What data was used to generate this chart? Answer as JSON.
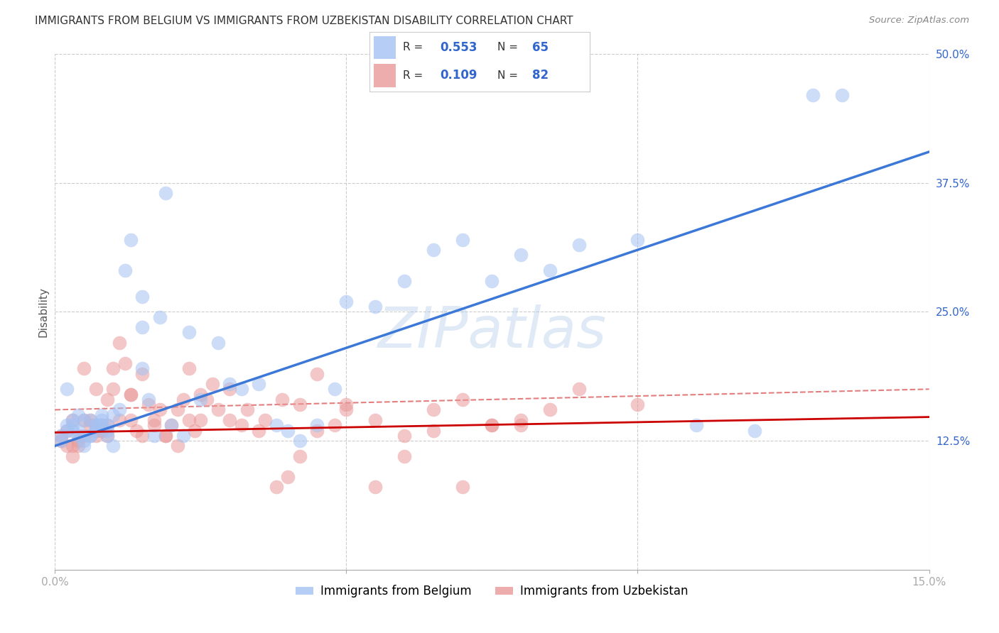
{
  "title": "IMMIGRANTS FROM BELGIUM VS IMMIGRANTS FROM UZBEKISTAN DISABILITY CORRELATION CHART",
  "source": "Source: ZipAtlas.com",
  "ylabel": "Disability",
  "xlim": [
    0.0,
    0.15
  ],
  "ylim": [
    0.0,
    0.5
  ],
  "belgium_R": 0.553,
  "belgium_N": 65,
  "uzbekistan_R": 0.109,
  "uzbekistan_N": 82,
  "belgium_color": "#a4c2f4",
  "uzbekistan_color": "#ea9999",
  "belgium_line_color": "#3c78d8",
  "uzbekistan_line_color": "#cc0000",
  "dashed_line_color": "#e06666",
  "background_color": "#ffffff",
  "grid_color": "#b7b7b7",
  "watermark": "ZIPatlas",
  "belgium_x": [
    0.001,
    0.001,
    0.002,
    0.002,
    0.003,
    0.003,
    0.004,
    0.004,
    0.005,
    0.005,
    0.006,
    0.006,
    0.007,
    0.007,
    0.008,
    0.008,
    0.009,
    0.009,
    0.01,
    0.01,
    0.011,
    0.012,
    0.013,
    0.015,
    0.015,
    0.016,
    0.017,
    0.018,
    0.019,
    0.02,
    0.022,
    0.023,
    0.025,
    0.028,
    0.03,
    0.032,
    0.035,
    0.038,
    0.04,
    0.042,
    0.045,
    0.048,
    0.05,
    0.055,
    0.06,
    0.065,
    0.07,
    0.075,
    0.08,
    0.085,
    0.09,
    0.1,
    0.11,
    0.12,
    0.13,
    0.002,
    0.003,
    0.004,
    0.005,
    0.006,
    0.007,
    0.008,
    0.009,
    0.015,
    0.135
  ],
  "belgium_y": [
    0.13,
    0.125,
    0.14,
    0.135,
    0.14,
    0.135,
    0.15,
    0.13,
    0.12,
    0.145,
    0.13,
    0.145,
    0.14,
    0.135,
    0.15,
    0.145,
    0.13,
    0.14,
    0.12,
    0.15,
    0.155,
    0.29,
    0.32,
    0.265,
    0.235,
    0.165,
    0.13,
    0.245,
    0.365,
    0.14,
    0.13,
    0.23,
    0.165,
    0.22,
    0.18,
    0.175,
    0.18,
    0.14,
    0.135,
    0.125,
    0.14,
    0.175,
    0.26,
    0.255,
    0.28,
    0.31,
    0.32,
    0.28,
    0.305,
    0.29,
    0.315,
    0.32,
    0.14,
    0.135,
    0.46,
    0.175,
    0.145,
    0.135,
    0.125,
    0.13,
    0.14,
    0.14,
    0.135,
    0.195,
    0.46
  ],
  "uzbekistan_x": [
    0.001,
    0.001,
    0.002,
    0.002,
    0.003,
    0.003,
    0.004,
    0.004,
    0.005,
    0.005,
    0.006,
    0.006,
    0.007,
    0.007,
    0.008,
    0.008,
    0.009,
    0.009,
    0.01,
    0.01,
    0.011,
    0.012,
    0.013,
    0.013,
    0.014,
    0.015,
    0.016,
    0.017,
    0.018,
    0.019,
    0.02,
    0.021,
    0.022,
    0.023,
    0.024,
    0.025,
    0.026,
    0.028,
    0.03,
    0.032,
    0.035,
    0.038,
    0.04,
    0.042,
    0.045,
    0.048,
    0.05,
    0.055,
    0.06,
    0.065,
    0.07,
    0.075,
    0.08,
    0.003,
    0.005,
    0.007,
    0.009,
    0.011,
    0.013,
    0.015,
    0.017,
    0.019,
    0.021,
    0.023,
    0.025,
    0.027,
    0.03,
    0.033,
    0.036,
    0.039,
    0.042,
    0.045,
    0.05,
    0.055,
    0.06,
    0.065,
    0.07,
    0.075,
    0.08,
    0.085,
    0.09,
    0.1
  ],
  "uzbekistan_y": [
    0.13,
    0.125,
    0.12,
    0.135,
    0.11,
    0.12,
    0.12,
    0.125,
    0.145,
    0.13,
    0.145,
    0.14,
    0.135,
    0.13,
    0.14,
    0.135,
    0.13,
    0.14,
    0.195,
    0.175,
    0.22,
    0.2,
    0.17,
    0.145,
    0.135,
    0.19,
    0.16,
    0.14,
    0.155,
    0.13,
    0.14,
    0.155,
    0.165,
    0.145,
    0.135,
    0.17,
    0.165,
    0.155,
    0.145,
    0.14,
    0.135,
    0.08,
    0.09,
    0.11,
    0.135,
    0.14,
    0.155,
    0.08,
    0.11,
    0.135,
    0.08,
    0.14,
    0.14,
    0.145,
    0.195,
    0.175,
    0.165,
    0.145,
    0.17,
    0.13,
    0.145,
    0.13,
    0.12,
    0.195,
    0.145,
    0.18,
    0.175,
    0.155,
    0.145,
    0.165,
    0.16,
    0.19,
    0.16,
    0.145,
    0.13,
    0.155,
    0.165,
    0.14,
    0.145,
    0.155,
    0.175,
    0.16
  ],
  "belgium_line_x0": 0.0,
  "belgium_line_y0": 0.12,
  "belgium_line_x1": 0.15,
  "belgium_line_y1": 0.405,
  "uzbekistan_line_x0": 0.0,
  "uzbekistan_line_y0": 0.133,
  "uzbekistan_line_x1": 0.15,
  "uzbekistan_line_y1": 0.148,
  "dashed_line_x0": 0.0,
  "dashed_line_y0": 0.155,
  "dashed_line_x1": 0.15,
  "dashed_line_y1": 0.175
}
